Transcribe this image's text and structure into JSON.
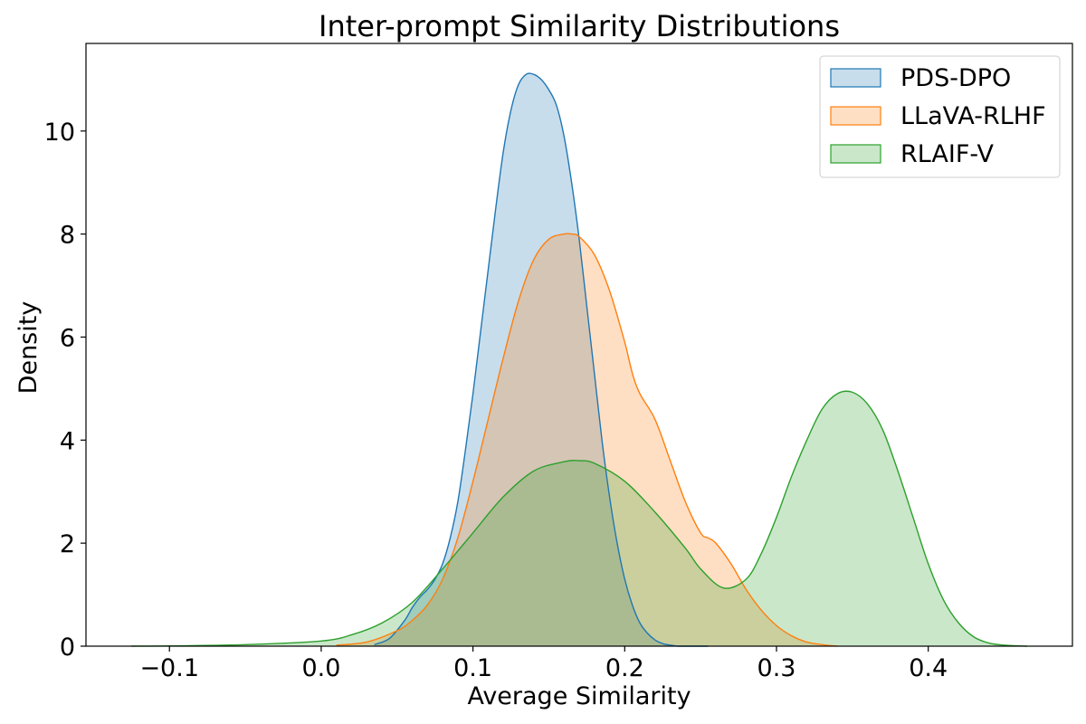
{
  "chart_data": {
    "type": "area",
    "title": "Inter-prompt Similarity Distributions",
    "xlabel": "Average Similarity",
    "ylabel": "Density",
    "xlim": [
      -0.155,
      0.495
    ],
    "ylim": [
      0,
      11.7
    ],
    "x_ticks": [
      -0.1,
      0.0,
      0.1,
      0.2,
      0.3,
      0.4
    ],
    "x_tick_labels": [
      "−0.1",
      "0.0",
      "0.1",
      "0.2",
      "0.3",
      "0.4"
    ],
    "y_ticks": [
      0,
      2,
      4,
      6,
      8,
      10
    ],
    "y_tick_labels": [
      "0",
      "2",
      "4",
      "6",
      "8",
      "10"
    ],
    "grid": false,
    "legend_position": "top-right",
    "series": [
      {
        "name": "PDS-DPO",
        "color": "#1f77b4",
        "fill_opacity": 0.25,
        "x": [
          0.035,
          0.045,
          0.055,
          0.06,
          0.065,
          0.07,
          0.075,
          0.08,
          0.085,
          0.09,
          0.095,
          0.1,
          0.105,
          0.11,
          0.115,
          0.12,
          0.125,
          0.13,
          0.135,
          0.14,
          0.145,
          0.15,
          0.155,
          0.16,
          0.165,
          0.17,
          0.175,
          0.18,
          0.185,
          0.19,
          0.195,
          0.2,
          0.205,
          0.21,
          0.215,
          0.22,
          0.225,
          0.23,
          0.235,
          0.24,
          0.245,
          0.25,
          0.255
        ],
        "y": [
          0.03,
          0.15,
          0.5,
          0.75,
          0.95,
          1.1,
          1.3,
          1.6,
          2.1,
          2.8,
          3.8,
          4.9,
          6.1,
          7.3,
          8.5,
          9.6,
          10.4,
          10.9,
          11.1,
          11.1,
          11.0,
          10.8,
          10.5,
          9.9,
          9.0,
          7.9,
          6.6,
          5.3,
          4.0,
          2.9,
          2.0,
          1.3,
          0.8,
          0.45,
          0.25,
          0.12,
          0.05,
          0.02,
          0.0,
          0.0,
          0.0,
          0.0,
          0.0
        ]
      },
      {
        "name": "LLaVA-RLHF",
        "color": "#ff7f0e",
        "fill_opacity": 0.25,
        "x": [
          0.01,
          0.03,
          0.05,
          0.06,
          0.07,
          0.08,
          0.09,
          0.1,
          0.11,
          0.12,
          0.13,
          0.14,
          0.15,
          0.16,
          0.165,
          0.17,
          0.18,
          0.19,
          0.2,
          0.205,
          0.21,
          0.22,
          0.23,
          0.24,
          0.25,
          0.255,
          0.26,
          0.27,
          0.28,
          0.29,
          0.3,
          0.31,
          0.32,
          0.33,
          0.34
        ],
        "y": [
          0.02,
          0.08,
          0.3,
          0.5,
          0.8,
          1.3,
          2.1,
          3.2,
          4.4,
          5.6,
          6.7,
          7.5,
          7.9,
          8.0,
          8.0,
          7.95,
          7.6,
          6.9,
          5.9,
          5.3,
          4.9,
          4.4,
          3.6,
          2.8,
          2.2,
          2.1,
          2.0,
          1.6,
          1.1,
          0.7,
          0.4,
          0.2,
          0.08,
          0.03,
          0.0
        ]
      },
      {
        "name": "RLAIF-V",
        "color": "#2ca02c",
        "fill_opacity": 0.25,
        "x": [
          -0.125,
          -0.1,
          -0.05,
          0.0,
          0.02,
          0.04,
          0.06,
          0.08,
          0.1,
          0.12,
          0.14,
          0.16,
          0.17,
          0.18,
          0.2,
          0.22,
          0.24,
          0.25,
          0.265,
          0.28,
          0.29,
          0.3,
          0.31,
          0.32,
          0.33,
          0.34,
          0.35,
          0.36,
          0.37,
          0.38,
          0.39,
          0.4,
          0.41,
          0.42,
          0.43,
          0.44,
          0.45,
          0.465
        ],
        "y": [
          0.0,
          0.005,
          0.03,
          0.1,
          0.22,
          0.45,
          0.85,
          1.5,
          2.2,
          2.9,
          3.4,
          3.58,
          3.6,
          3.55,
          3.2,
          2.6,
          1.9,
          1.5,
          1.13,
          1.3,
          1.8,
          2.5,
          3.3,
          4.0,
          4.6,
          4.9,
          4.93,
          4.7,
          4.2,
          3.4,
          2.5,
          1.6,
          0.9,
          0.45,
          0.18,
          0.06,
          0.02,
          0.0
        ]
      }
    ]
  }
}
